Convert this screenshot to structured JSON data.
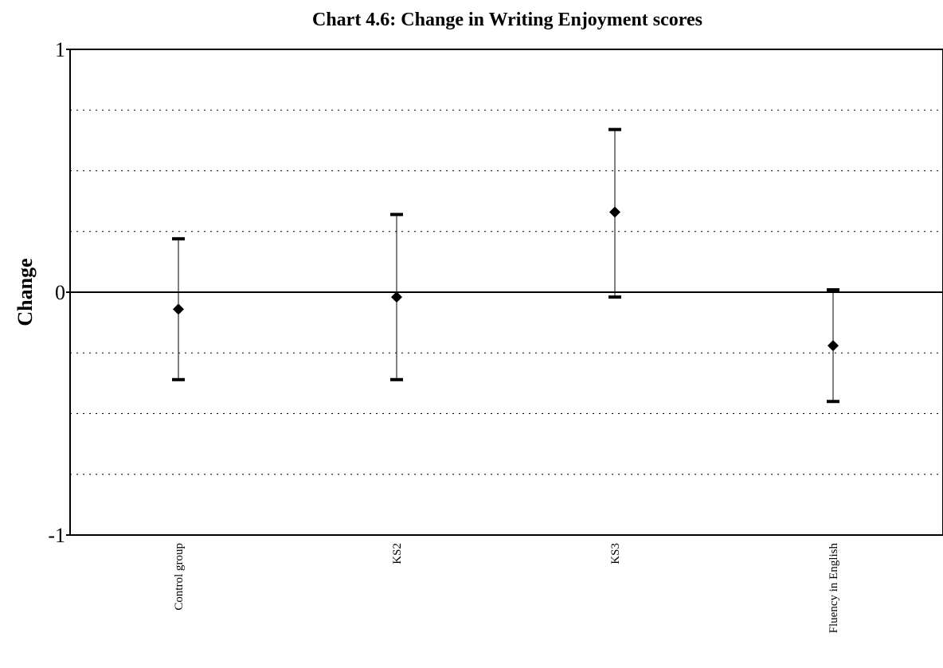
{
  "chart_data": {
    "type": "scatter",
    "title": "Chart 4.6: Change in Writing Enjoyment scores",
    "xlabel": "",
    "ylabel": "Change",
    "ylim": [
      -1,
      1
    ],
    "yticks": [
      "1",
      "0",
      "-1"
    ],
    "grid": "horizontal dotted lines every 0.25",
    "categories": [
      "Control group",
      "KS2",
      "KS3",
      "Fluency in English"
    ],
    "series": [
      {
        "values": [
          -0.07,
          -0.02,
          0.33,
          -0.22
        ],
        "lower": [
          -0.36,
          -0.36,
          -0.02,
          -0.45
        ],
        "upper": [
          0.22,
          0.32,
          0.67,
          0.01
        ]
      }
    ],
    "marker": "diamond",
    "colors": {
      "marker": "#000000",
      "axis": "#000000",
      "grid": "#000000"
    }
  }
}
